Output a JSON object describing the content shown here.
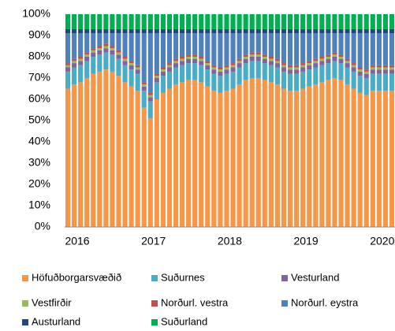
{
  "chart_data": {
    "type": "stacked_bar",
    "categories": [
      "2016",
      null,
      null,
      null,
      null,
      null,
      null,
      null,
      null,
      null,
      null,
      null,
      "2017",
      null,
      null,
      null,
      null,
      null,
      null,
      null,
      null,
      null,
      null,
      null,
      "2018",
      null,
      null,
      null,
      null,
      null,
      null,
      null,
      null,
      null,
      null,
      null,
      "2019",
      null,
      null,
      null,
      null,
      null,
      null,
      null,
      null,
      null,
      null,
      null,
      "2020",
      null,
      null,
      null
    ],
    "series": [
      {
        "name": "Höfuðborgarsvæðið",
        "color": "#f79646",
        "values": [
          65,
          67,
          68,
          70,
          72,
          73,
          74,
          73,
          71,
          68,
          66,
          64,
          56,
          51,
          60,
          63,
          65,
          67,
          68,
          69,
          69,
          68,
          66,
          64,
          63,
          64,
          65,
          67,
          69,
          70,
          70,
          69,
          68,
          67,
          65,
          64,
          64,
          65,
          66,
          67,
          68,
          69,
          70,
          69,
          67,
          65,
          63,
          62,
          64,
          64,
          64,
          64
        ]
      },
      {
        "name": "Suðurnes",
        "color": "#4bacc6",
        "values": [
          8,
          8,
          8,
          8,
          8,
          8,
          8,
          8,
          8,
          8,
          8,
          8,
          8,
          8,
          8,
          8,
          8,
          8,
          8,
          8,
          8,
          8,
          8,
          8,
          8,
          8,
          8,
          8,
          8,
          8,
          8,
          8,
          8,
          8,
          8,
          8,
          8,
          8,
          8,
          8,
          8,
          8,
          8,
          8,
          8,
          8,
          8,
          8,
          8,
          8,
          8,
          8
        ]
      },
      {
        "name": "Vesturland",
        "color": "#8064a2",
        "values": [
          2,
          2,
          2,
          2,
          2,
          2,
          2,
          2,
          2,
          2,
          2,
          2,
          2,
          2,
          2,
          2,
          2,
          2,
          2,
          2,
          2,
          2,
          2,
          2,
          2,
          2,
          2,
          2,
          2,
          2,
          2,
          2,
          2,
          2,
          2,
          2,
          2,
          2,
          2,
          2,
          2,
          2,
          2,
          2,
          2,
          2,
          2,
          2,
          2,
          2,
          2,
          2
        ]
      },
      {
        "name": "Vestfirðir",
        "color": "#9bbb59",
        "values": [
          1,
          1,
          1,
          1,
          1,
          1,
          1,
          1,
          1,
          1,
          1,
          1,
          1,
          1,
          1,
          1,
          1,
          1,
          1,
          1,
          1,
          1,
          1,
          1,
          1,
          1,
          1,
          1,
          1,
          1,
          1,
          1,
          1,
          1,
          1,
          1,
          1,
          1,
          1,
          1,
          1,
          1,
          1,
          1,
          1,
          1,
          1,
          1,
          1,
          1,
          1,
          1
        ]
      },
      {
        "name": "Norðurl. vestra",
        "color": "#c0504d",
        "values": [
          1,
          1,
          1,
          1,
          1,
          1,
          1,
          1,
          1,
          1,
          1,
          1,
          1,
          1,
          1,
          1,
          1,
          1,
          1,
          1,
          1,
          1,
          1,
          1,
          1,
          1,
          1,
          1,
          1,
          1,
          1,
          1,
          1,
          1,
          1,
          1,
          1,
          1,
          1,
          1,
          1,
          1,
          1,
          1,
          1,
          1,
          1,
          1,
          1,
          1,
          1,
          1
        ]
      },
      {
        "name": "Norðurl. eystra",
        "color": "#4f81bd",
        "values": [
          14,
          12,
          11,
          9,
          7,
          6,
          5,
          6,
          8,
          11,
          13,
          15,
          23,
          28,
          19,
          16,
          14,
          12,
          11,
          10,
          10,
          11,
          13,
          15,
          16,
          15,
          14,
          12,
          10,
          9,
          9,
          10,
          11,
          12,
          14,
          15,
          15,
          14,
          13,
          12,
          11,
          10,
          9,
          10,
          12,
          14,
          16,
          17,
          15,
          15,
          15,
          15
        ]
      },
      {
        "name": "Austurland",
        "color": "#1f497d",
        "values": [
          2,
          2,
          2,
          2,
          2,
          2,
          2,
          2,
          2,
          2,
          2,
          2,
          2,
          2,
          2,
          2,
          2,
          2,
          2,
          2,
          2,
          2,
          2,
          2,
          2,
          2,
          2,
          2,
          2,
          2,
          2,
          2,
          2,
          2,
          2,
          2,
          2,
          2,
          2,
          2,
          2,
          2,
          2,
          2,
          2,
          2,
          2,
          2,
          2,
          2,
          2,
          2
        ]
      },
      {
        "name": "Suðurland",
        "color": "#00b050",
        "values": [
          7,
          7,
          7,
          7,
          7,
          7,
          7,
          7,
          7,
          7,
          7,
          7,
          7,
          7,
          7,
          7,
          7,
          7,
          7,
          7,
          7,
          7,
          7,
          7,
          7,
          7,
          7,
          7,
          7,
          7,
          7,
          7,
          7,
          7,
          7,
          7,
          7,
          7,
          7,
          7,
          7,
          7,
          7,
          7,
          7,
          7,
          7,
          7,
          7,
          7,
          7,
          7
        ]
      }
    ],
    "ylim": [
      0,
      100
    ],
    "yticks": [
      {
        "value": 0,
        "label": "0%"
      },
      {
        "value": 10,
        "label": "10%"
      },
      {
        "value": 20,
        "label": "20%"
      },
      {
        "value": 30,
        "label": "30%"
      },
      {
        "value": 40,
        "label": "40%"
      },
      {
        "value": 50,
        "label": "50%"
      },
      {
        "value": 60,
        "label": "60%"
      },
      {
        "value": 70,
        "label": "70%"
      },
      {
        "value": 80,
        "label": "80%"
      },
      {
        "value": 90,
        "label": "90%"
      },
      {
        "value": 100,
        "label": "100%"
      }
    ]
  }
}
